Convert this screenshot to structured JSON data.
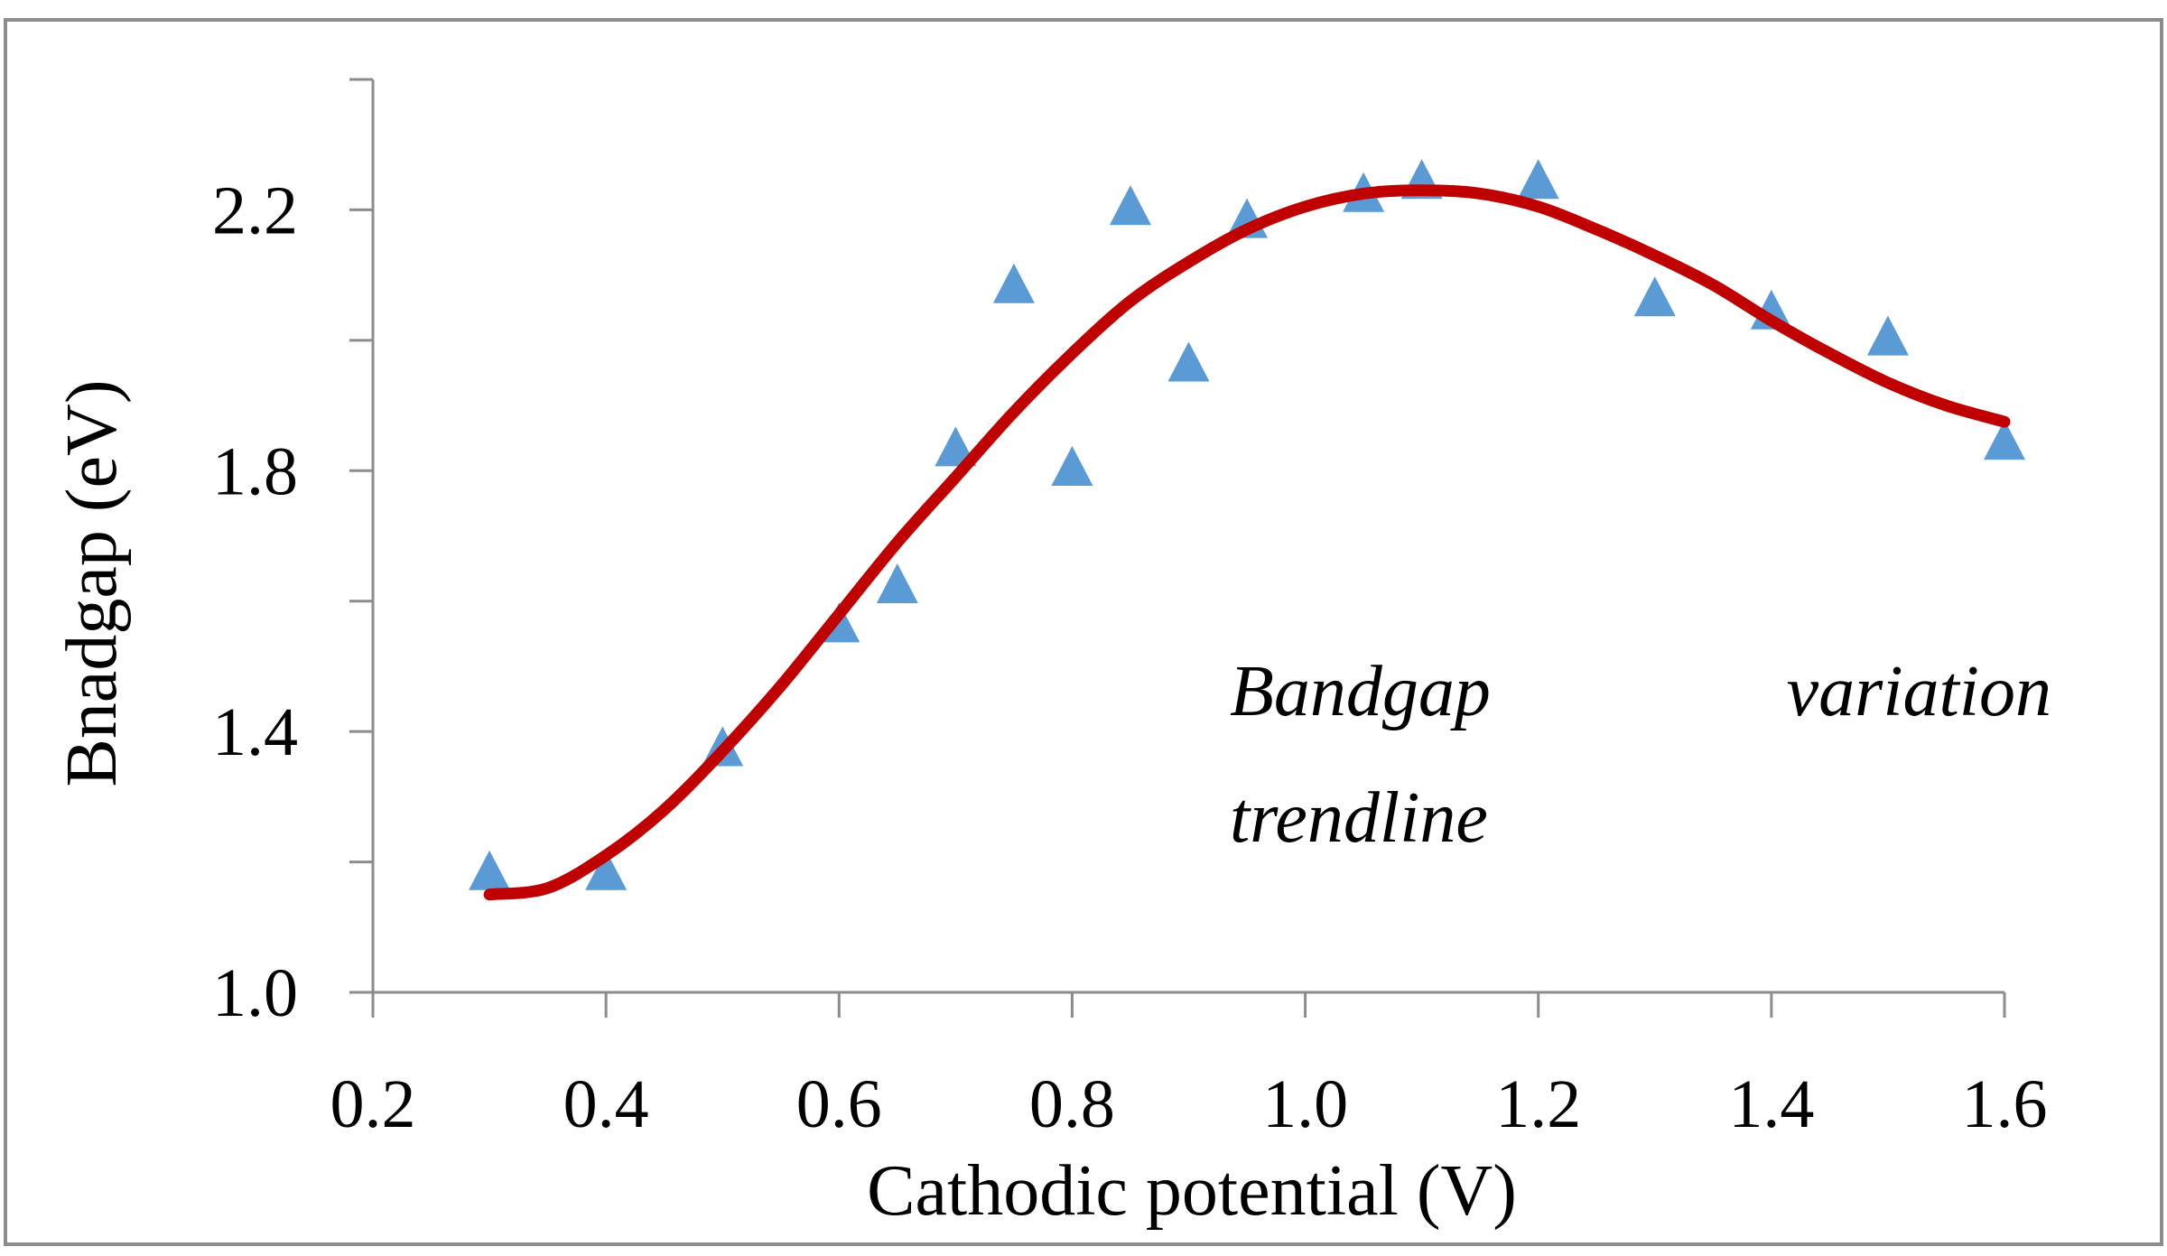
{
  "chart_data": {
    "type": "scatter",
    "title": "",
    "xlabel": "Cathodic potential (V)",
    "ylabel": "Bnadgap (eV)",
    "xlim": [
      0.2,
      1.6
    ],
    "ylim": [
      1.0,
      2.4
    ],
    "x_ticks": [
      0.2,
      0.4,
      0.6,
      0.8,
      1.0,
      1.2,
      1.4,
      1.6
    ],
    "x_tick_labels": [
      "0.2",
      "0.4",
      "0.6",
      "0.8",
      "1.0",
      "1.2",
      "1.4",
      "1.6"
    ],
    "y_major_ticks": [
      1.0,
      1.4,
      1.8,
      2.2
    ],
    "y_tick_labels": [
      "1.0",
      "1.4",
      "1.8",
      "2.2"
    ],
    "y_minor_ticks": [
      1.2,
      1.6,
      2.0,
      2.4
    ],
    "grid": false,
    "series": [
      {
        "name": "Bandgap",
        "marker": "triangle",
        "color": "#5b9bd5",
        "points": [
          {
            "x": 0.3,
            "y": 1.18
          },
          {
            "x": 0.4,
            "y": 1.18
          },
          {
            "x": 0.5,
            "y": 1.37
          },
          {
            "x": 0.6,
            "y": 1.56
          },
          {
            "x": 0.65,
            "y": 1.62
          },
          {
            "x": 0.7,
            "y": 1.83
          },
          {
            "x": 0.75,
            "y": 2.08
          },
          {
            "x": 0.8,
            "y": 1.8
          },
          {
            "x": 0.85,
            "y": 2.2
          },
          {
            "x": 0.9,
            "y": 1.96
          },
          {
            "x": 0.95,
            "y": 2.18
          },
          {
            "x": 1.05,
            "y": 2.22
          },
          {
            "x": 1.1,
            "y": 2.24
          },
          {
            "x": 1.2,
            "y": 2.24
          },
          {
            "x": 1.3,
            "y": 2.06
          },
          {
            "x": 1.4,
            "y": 2.04
          },
          {
            "x": 1.5,
            "y": 2.0
          },
          {
            "x": 1.6,
            "y": 1.84
          }
        ]
      }
    ],
    "trendline": {
      "name": "Bandgap variation trendline",
      "color": "#c00000",
      "points": [
        {
          "x": 0.3,
          "y": 1.15
        },
        {
          "x": 0.35,
          "y": 1.16
        },
        {
          "x": 0.4,
          "y": 1.21
        },
        {
          "x": 0.45,
          "y": 1.28
        },
        {
          "x": 0.5,
          "y": 1.37
        },
        {
          "x": 0.55,
          "y": 1.47
        },
        {
          "x": 0.6,
          "y": 1.58
        },
        {
          "x": 0.65,
          "y": 1.69
        },
        {
          "x": 0.7,
          "y": 1.79
        },
        {
          "x": 0.75,
          "y": 1.89
        },
        {
          "x": 0.8,
          "y": 1.98
        },
        {
          "x": 0.85,
          "y": 2.06
        },
        {
          "x": 0.9,
          "y": 2.12
        },
        {
          "x": 0.95,
          "y": 2.17
        },
        {
          "x": 1.0,
          "y": 2.205
        },
        {
          "x": 1.05,
          "y": 2.225
        },
        {
          "x": 1.1,
          "y": 2.23
        },
        {
          "x": 1.15,
          "y": 2.225
        },
        {
          "x": 1.2,
          "y": 2.205
        },
        {
          "x": 1.25,
          "y": 2.17
        },
        {
          "x": 1.3,
          "y": 2.13
        },
        {
          "x": 1.35,
          "y": 2.085
        },
        {
          "x": 1.4,
          "y": 2.03
        },
        {
          "x": 1.45,
          "y": 1.98
        },
        {
          "x": 1.5,
          "y": 1.935
        },
        {
          "x": 1.55,
          "y": 1.9
        },
        {
          "x": 1.6,
          "y": 1.875
        }
      ]
    },
    "annotation": {
      "word1": "Bandgap",
      "word2": "variation",
      "line2": "trendline"
    }
  }
}
